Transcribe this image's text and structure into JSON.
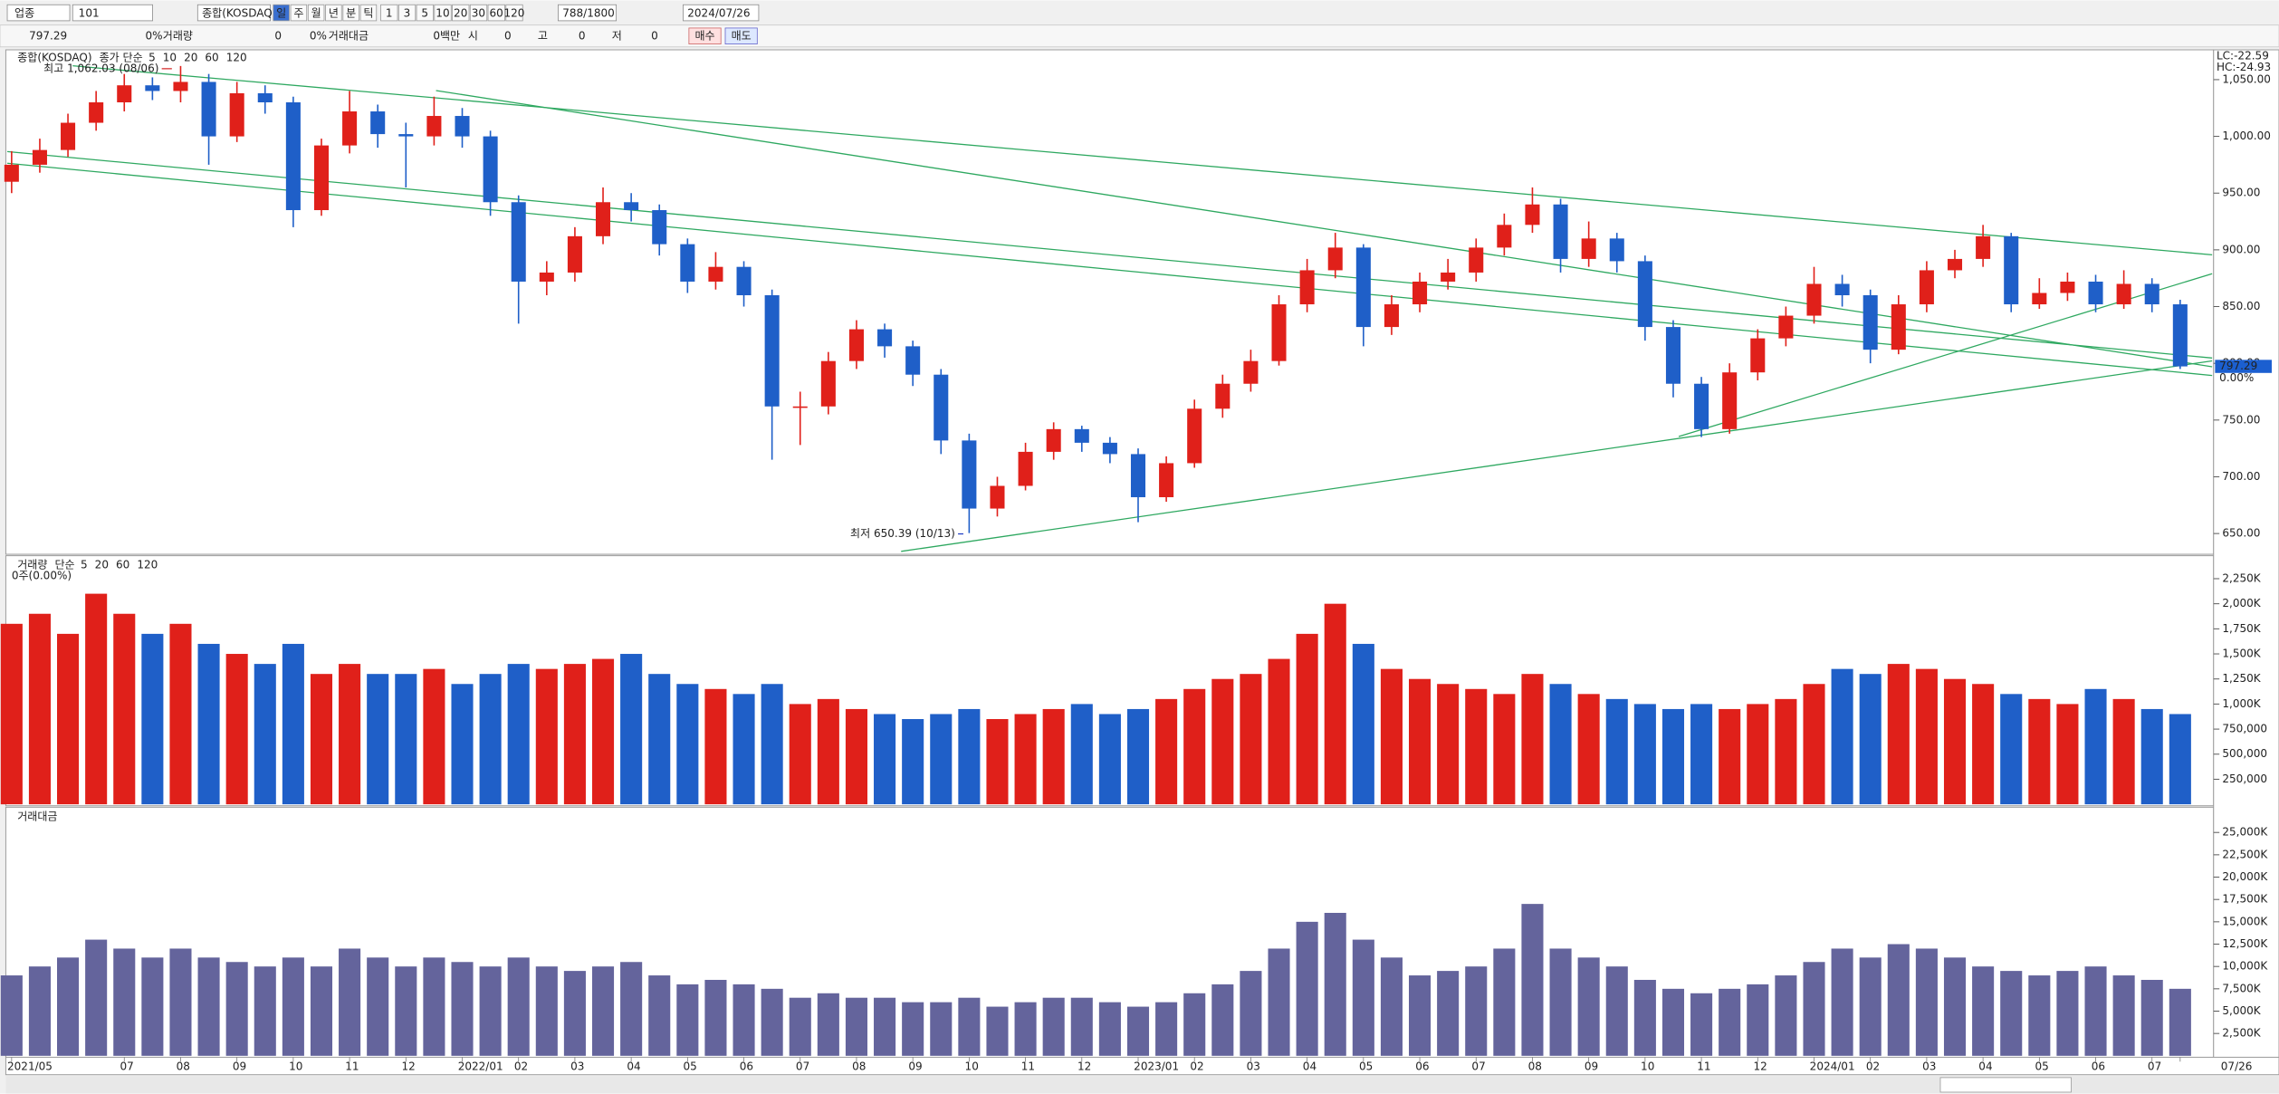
{
  "toolbar": {
    "market": "업종",
    "code": "101",
    "name": "종합(KOSDAQ)",
    "periods": [
      "일",
      "주",
      "월",
      "년",
      "분",
      "틱"
    ],
    "intervals": [
      "1",
      "3",
      "5",
      "10",
      "20",
      "30",
      "60",
      "120"
    ],
    "count": "788",
    "max": "/1800",
    "date": "2024/07/26"
  },
  "quote": {
    "price": "797.29",
    "change": "0%",
    "volume_label": "거래량",
    "volume": "0",
    "change2": "0%",
    "value_label": "거래대금",
    "value": "0백만",
    "open_label": "시",
    "open": "0",
    "high_label": "고",
    "high": "0",
    "low_label": "저",
    "low": "0",
    "buy": "매수",
    "sell": "매도"
  },
  "chart_data": [
    {
      "type": "candlestick",
      "name": "종합(KOSDAQ)",
      "ma_label": "종가 단순",
      "ma_periods": [
        "5",
        "10",
        "20",
        "60",
        "120"
      ],
      "ma_colors": [
        "#b000b0",
        "#2040d0",
        "#e09000",
        "#20a040",
        "#888888"
      ],
      "high_note": "최고 1,062.03 (08/06)",
      "low_note": "최저 650.39 (10/13)",
      "lc": "LC:-22.59",
      "hc": "HC:-24.93",
      "change_label": "0.00%",
      "up_color": "#e0201a",
      "down_color": "#1f5fc8",
      "categories": [
        "2021/05",
        null,
        null,
        null,
        "07",
        null,
        "08",
        null,
        "09",
        null,
        "10",
        null,
        "11",
        null,
        "12",
        null,
        "2022/01",
        null,
        "02",
        null,
        "03",
        null,
        "04",
        null,
        "05",
        null,
        "06",
        null,
        "07",
        null,
        "08",
        null,
        "09",
        null,
        "10",
        null,
        "11",
        null,
        "12",
        null,
        "2023/01",
        null,
        "02",
        null,
        "03",
        null,
        "04",
        null,
        "05",
        null,
        "06",
        null,
        "07",
        null,
        "08",
        null,
        "09",
        null,
        "10",
        null,
        "11",
        null,
        "12",
        null,
        "2024/01",
        null,
        "02",
        null,
        "03",
        null,
        "04",
        null,
        "05",
        null,
        "06",
        null,
        "07",
        "07/26"
      ],
      "open": [
        960,
        975,
        988,
        1012,
        1030,
        1045,
        1040,
        1048,
        1000,
        1038,
        1030,
        935,
        992,
        1022,
        1002,
        1000,
        1018,
        1000,
        942,
        872,
        880,
        912,
        942,
        935,
        905,
        872,
        885,
        860,
        762,
        762,
        802,
        830,
        815,
        790,
        732,
        672,
        692,
        722,
        742,
        730,
        720,
        682,
        712,
        760,
        782,
        802,
        852,
        882,
        902,
        832,
        852,
        872,
        880,
        902,
        922,
        940,
        892,
        910,
        890,
        832,
        782,
        742,
        792,
        822,
        842,
        870,
        860,
        812,
        852,
        882,
        892,
        912,
        852,
        862,
        872,
        852,
        870,
        852
      ],
      "high": [
        987,
        998,
        1020,
        1040,
        1055,
        1052,
        1062.03,
        1055,
        1048,
        1045,
        1035,
        998,
        1040,
        1028,
        1012,
        1035,
        1025,
        1005,
        948,
        890,
        920,
        955,
        950,
        940,
        910,
        898,
        890,
        865,
        775,
        810,
        838,
        835,
        820,
        795,
        738,
        700,
        730,
        748,
        745,
        735,
        725,
        718,
        768,
        790,
        812,
        860,
        892,
        915,
        905,
        860,
        880,
        892,
        910,
        932,
        955,
        945,
        925,
        915,
        895,
        838,
        788,
        800,
        830,
        850,
        885,
        878,
        865,
        860,
        890,
        900,
        922,
        915,
        875,
        880,
        878,
        882,
        875,
        856
      ],
      "low": [
        950,
        968,
        982,
        1005,
        1022,
        1032,
        1030,
        975,
        995,
        1020,
        920,
        930,
        985,
        990,
        955,
        992,
        990,
        930,
        835,
        860,
        872,
        905,
        925,
        895,
        862,
        865,
        850,
        715,
        728,
        755,
        795,
        805,
        780,
        720,
        650.39,
        665,
        688,
        715,
        722,
        712,
        660,
        678,
        708,
        752,
        775,
        798,
        845,
        875,
        815,
        825,
        845,
        865,
        872,
        895,
        915,
        880,
        885,
        880,
        820,
        770,
        735,
        738,
        785,
        815,
        835,
        850,
        800,
        808,
        845,
        875,
        885,
        845,
        848,
        855,
        845,
        848,
        845,
        795
      ],
      "close": [
        975,
        988,
        1012,
        1030,
        1045,
        1040,
        1048,
        1000,
        1038,
        1030,
        935,
        992,
        1022,
        1002,
        1000,
        1018,
        1000,
        942,
        872,
        880,
        912,
        942,
        935,
        905,
        872,
        885,
        860,
        762,
        762,
        802,
        830,
        815,
        790,
        732,
        672,
        692,
        722,
        742,
        730,
        720,
        682,
        712,
        760,
        782,
        802,
        852,
        882,
        902,
        832,
        852,
        872,
        880,
        902,
        922,
        940,
        892,
        910,
        890,
        832,
        782,
        742,
        792,
        822,
        842,
        870,
        860,
        812,
        852,
        882,
        892,
        912,
        852,
        862,
        872,
        852,
        870,
        852,
        797.29
      ],
      "ylim": [
        633,
        1075
      ],
      "yticks": [
        {
          "value": 1050,
          "label": "1,050.00"
        },
        {
          "value": 1000,
          "label": "1,000.00"
        },
        {
          "value": 950,
          "label": "950.00"
        },
        {
          "value": 900,
          "label": "900.00"
        },
        {
          "value": 850,
          "label": "850.00"
        },
        {
          "value": 800,
          "label": "800.00"
        },
        {
          "value": 750,
          "label": "750.00"
        },
        {
          "value": 700,
          "label": "700.00"
        },
        {
          "value": 650,
          "label": "650.00"
        }
      ]
    },
    {
      "type": "bar",
      "name": "거래량",
      "ma_label": "단순",
      "ma_periods": [
        "5",
        "20",
        "60",
        "120"
      ],
      "ma_colors": [
        "#b000b0",
        "#e09000",
        "#20a040",
        "#888888"
      ],
      "note": "0주(0.00%)",
      "values": [
        1800000,
        1900000,
        1700000,
        2100000,
        1900000,
        1700000,
        1800000,
        1600000,
        1500000,
        1400000,
        1600000,
        1300000,
        1400000,
        1300000,
        1300000,
        1350000,
        1200000,
        1300000,
        1400000,
        1350000,
        1400000,
        1450000,
        1500000,
        1300000,
        1200000,
        1150000,
        1100000,
        1200000,
        1000000,
        1050000,
        950000,
        900000,
        850000,
        900000,
        950000,
        850000,
        900000,
        950000,
        1000000,
        900000,
        950000,
        1050000,
        1150000,
        1250000,
        1300000,
        1450000,
        1700000,
        2000000,
        1600000,
        1350000,
        1250000,
        1200000,
        1150000,
        1100000,
        1300000,
        1200000,
        1100000,
        1050000,
        1000000,
        950000,
        1000000,
        950000,
        1000000,
        1050000,
        1200000,
        1350000,
        1300000,
        1400000,
        1350000,
        1250000,
        1200000,
        1100000,
        1050000,
        1000000,
        1150000,
        1050000,
        950000,
        900000
      ],
      "ylim": [
        0,
        2450000
      ],
      "yticks": [
        {
          "value": 2250000,
          "label": "2,250K"
        },
        {
          "value": 2000000,
          "label": "2,000K"
        },
        {
          "value": 1750000,
          "label": "1,750K"
        },
        {
          "value": 1500000,
          "label": "1,500K"
        },
        {
          "value": 1250000,
          "label": "1,250K"
        },
        {
          "value": 1000000,
          "label": "1,000K"
        },
        {
          "value": 750000,
          "label": "750,000"
        },
        {
          "value": 500000,
          "label": "500,000"
        },
        {
          "value": 250000,
          "label": "250,000"
        }
      ]
    },
    {
      "type": "bar",
      "name": "거래대금",
      "color": "#64649c",
      "values": [
        9000000,
        10000000,
        11000000,
        13000000,
        12000000,
        11000000,
        12000000,
        11000000,
        10500000,
        10000000,
        11000000,
        10000000,
        12000000,
        11000000,
        10000000,
        11000000,
        10500000,
        10000000,
        11000000,
        10000000,
        9500000,
        10000000,
        10500000,
        9000000,
        8000000,
        8500000,
        8000000,
        7500000,
        6500000,
        7000000,
        6500000,
        6500000,
        6000000,
        6000000,
        6500000,
        5500000,
        6000000,
        6500000,
        6500000,
        6000000,
        5500000,
        6000000,
        7000000,
        8000000,
        9500000,
        12000000,
        15000000,
        16000000,
        13000000,
        11000000,
        9000000,
        9500000,
        10000000,
        12000000,
        17000000,
        12000000,
        11000000,
        10000000,
        8500000,
        7500000,
        7000000,
        7500000,
        8000000,
        9000000,
        10500000,
        12000000,
        11000000,
        12500000,
        12000000,
        11000000,
        10000000,
        9500000,
        9000000,
        9500000,
        10000000,
        9000000,
        8500000,
        7500000
      ],
      "ylim": [
        0,
        27500000
      ],
      "yticks": [
        {
          "value": 25000000,
          "label": "25,000K"
        },
        {
          "value": 22500000,
          "label": "22,500K"
        },
        {
          "value": 20000000,
          "label": "20,000K"
        },
        {
          "value": 17500000,
          "label": "17,500K"
        },
        {
          "value": 15000000,
          "label": "15,000K"
        },
        {
          "value": 12500000,
          "label": "12,500K"
        },
        {
          "value": 10000000,
          "label": "10,000K"
        },
        {
          "value": 7500000,
          "label": "7,500K"
        },
        {
          "value": 5000000,
          "label": "5,000K"
        },
        {
          "value": 2500000,
          "label": "2,500K"
        }
      ]
    }
  ]
}
